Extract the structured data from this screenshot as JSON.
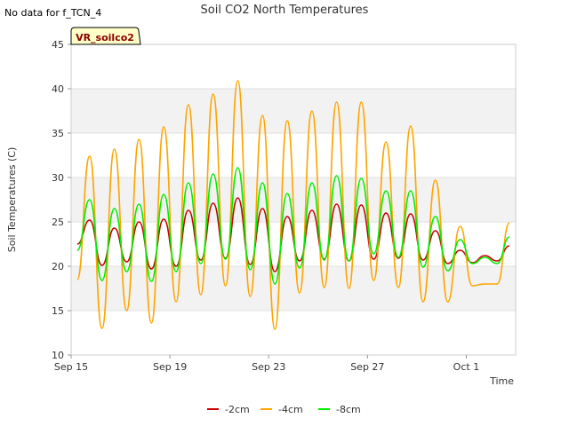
{
  "no_data_note": "No data for f_TCN_4",
  "chart_data": {
    "type": "line",
    "title": "Soil CO2 North Temperatures",
    "xlabel": "Time",
    "ylabel": "Soil Temperatures (C)",
    "badge": "VR_soilco2",
    "ylim": [
      10,
      45
    ],
    "yticks": [
      10,
      15,
      20,
      25,
      30,
      35,
      40,
      45
    ],
    "xlim": [
      "2024-09-15",
      "2024-10-03"
    ],
    "xticks": [
      {
        "date": "2024-09-15",
        "label": "Sep 15"
      },
      {
        "date": "2024-09-19",
        "label": "Sep 19"
      },
      {
        "date": "2024-09-23",
        "label": "Sep 23"
      },
      {
        "date": "2024-09-27",
        "label": "Sep 27"
      },
      {
        "date": "2024-10-01",
        "label": "Oct 1"
      }
    ],
    "grid": "horizontal bands",
    "legend_position": "bottom-center",
    "series": [
      {
        "name": "-2cm",
        "color": "#cc0000",
        "x": [
          "2024-09-15T06:00",
          "2024-09-15T18:00",
          "2024-09-16T06:00",
          "2024-09-16T18:00",
          "2024-09-17T06:00",
          "2024-09-17T18:00",
          "2024-09-18T06:00",
          "2024-09-18T18:00",
          "2024-09-19T06:00",
          "2024-09-19T18:00",
          "2024-09-20T06:00",
          "2024-09-20T18:00",
          "2024-09-21T06:00",
          "2024-09-21T18:00",
          "2024-09-22T06:00",
          "2024-09-22T18:00",
          "2024-09-23T06:00",
          "2024-09-23T18:00",
          "2024-09-24T06:00",
          "2024-09-24T18:00",
          "2024-09-25T06:00",
          "2024-09-25T18:00",
          "2024-09-26T06:00",
          "2024-09-26T18:00",
          "2024-09-27T06:00",
          "2024-09-27T18:00",
          "2024-09-28T06:00",
          "2024-09-28T18:00",
          "2024-09-29T06:00",
          "2024-09-29T18:00",
          "2024-09-30T06:00",
          "2024-09-30T18:00",
          "2024-10-01T06:00",
          "2024-10-01T18:00",
          "2024-10-02T06:00",
          "2024-10-02T18:00"
        ],
        "values": [
          22.5,
          25.2,
          20.1,
          24.3,
          20.5,
          25.0,
          19.7,
          25.3,
          20.0,
          26.3,
          20.7,
          27.1,
          20.9,
          27.7,
          20.2,
          26.5,
          19.4,
          25.6,
          20.6,
          26.3,
          20.8,
          27.0,
          20.6,
          26.9,
          20.8,
          26.0,
          20.9,
          25.9,
          20.7,
          24.0,
          20.3,
          21.8,
          20.4,
          21.2,
          20.6,
          22.3
        ]
      },
      {
        "name": "-4cm",
        "color": "#ffa500",
        "x": [
          "2024-09-15T06:00",
          "2024-09-15T18:00",
          "2024-09-16T06:00",
          "2024-09-16T18:00",
          "2024-09-17T06:00",
          "2024-09-17T18:00",
          "2024-09-18T06:00",
          "2024-09-18T18:00",
          "2024-09-19T06:00",
          "2024-09-19T18:00",
          "2024-09-20T06:00",
          "2024-09-20T18:00",
          "2024-09-21T06:00",
          "2024-09-21T18:00",
          "2024-09-22T06:00",
          "2024-09-22T18:00",
          "2024-09-23T06:00",
          "2024-09-23T18:00",
          "2024-09-24T06:00",
          "2024-09-24T18:00",
          "2024-09-25T06:00",
          "2024-09-25T18:00",
          "2024-09-26T06:00",
          "2024-09-26T18:00",
          "2024-09-27T06:00",
          "2024-09-27T18:00",
          "2024-09-28T06:00",
          "2024-09-28T18:00",
          "2024-09-29T06:00",
          "2024-09-29T18:00",
          "2024-09-30T06:00",
          "2024-09-30T18:00",
          "2024-10-01T06:00",
          "2024-10-01T18:00",
          "2024-10-02T06:00",
          "2024-10-02T18:00"
        ],
        "values": [
          18.5,
          32.4,
          13.0,
          33.2,
          15.0,
          34.3,
          13.6,
          35.7,
          16.0,
          38.2,
          16.8,
          39.4,
          17.8,
          40.9,
          16.6,
          37.0,
          12.9,
          36.4,
          17.0,
          37.5,
          17.6,
          38.5,
          17.5,
          38.5,
          18.4,
          34.0,
          17.6,
          35.8,
          16.0,
          29.7,
          16.0,
          24.5,
          17.8,
          18.0,
          18.0,
          24.9
        ]
      },
      {
        "name": "-8cm",
        "color": "#00ee00",
        "x": [
          "2024-09-15T06:00",
          "2024-09-15T18:00",
          "2024-09-16T06:00",
          "2024-09-16T18:00",
          "2024-09-17T06:00",
          "2024-09-17T18:00",
          "2024-09-18T06:00",
          "2024-09-18T18:00",
          "2024-09-19T06:00",
          "2024-09-19T18:00",
          "2024-09-20T06:00",
          "2024-09-20T18:00",
          "2024-09-21T06:00",
          "2024-09-21T18:00",
          "2024-09-22T06:00",
          "2024-09-22T18:00",
          "2024-09-23T06:00",
          "2024-09-23T18:00",
          "2024-09-24T06:00",
          "2024-09-24T18:00",
          "2024-09-25T06:00",
          "2024-09-25T18:00",
          "2024-09-26T06:00",
          "2024-09-26T18:00",
          "2024-09-27T06:00",
          "2024-09-27T18:00",
          "2024-09-28T06:00",
          "2024-09-28T18:00",
          "2024-09-29T06:00",
          "2024-09-29T18:00",
          "2024-09-30T06:00",
          "2024-09-30T18:00",
          "2024-10-01T06:00",
          "2024-10-01T18:00",
          "2024-10-02T06:00",
          "2024-10-02T18:00"
        ],
        "values": [
          21.8,
          27.5,
          18.4,
          26.5,
          19.4,
          27.0,
          18.3,
          28.1,
          19.4,
          29.4,
          20.3,
          30.4,
          20.8,
          31.1,
          19.6,
          29.4,
          18.0,
          28.2,
          19.8,
          29.4,
          20.7,
          30.2,
          20.6,
          29.9,
          21.4,
          28.5,
          21.0,
          28.5,
          19.9,
          25.6,
          19.5,
          23.0,
          20.3,
          21.0,
          20.3,
          23.3
        ]
      }
    ]
  }
}
